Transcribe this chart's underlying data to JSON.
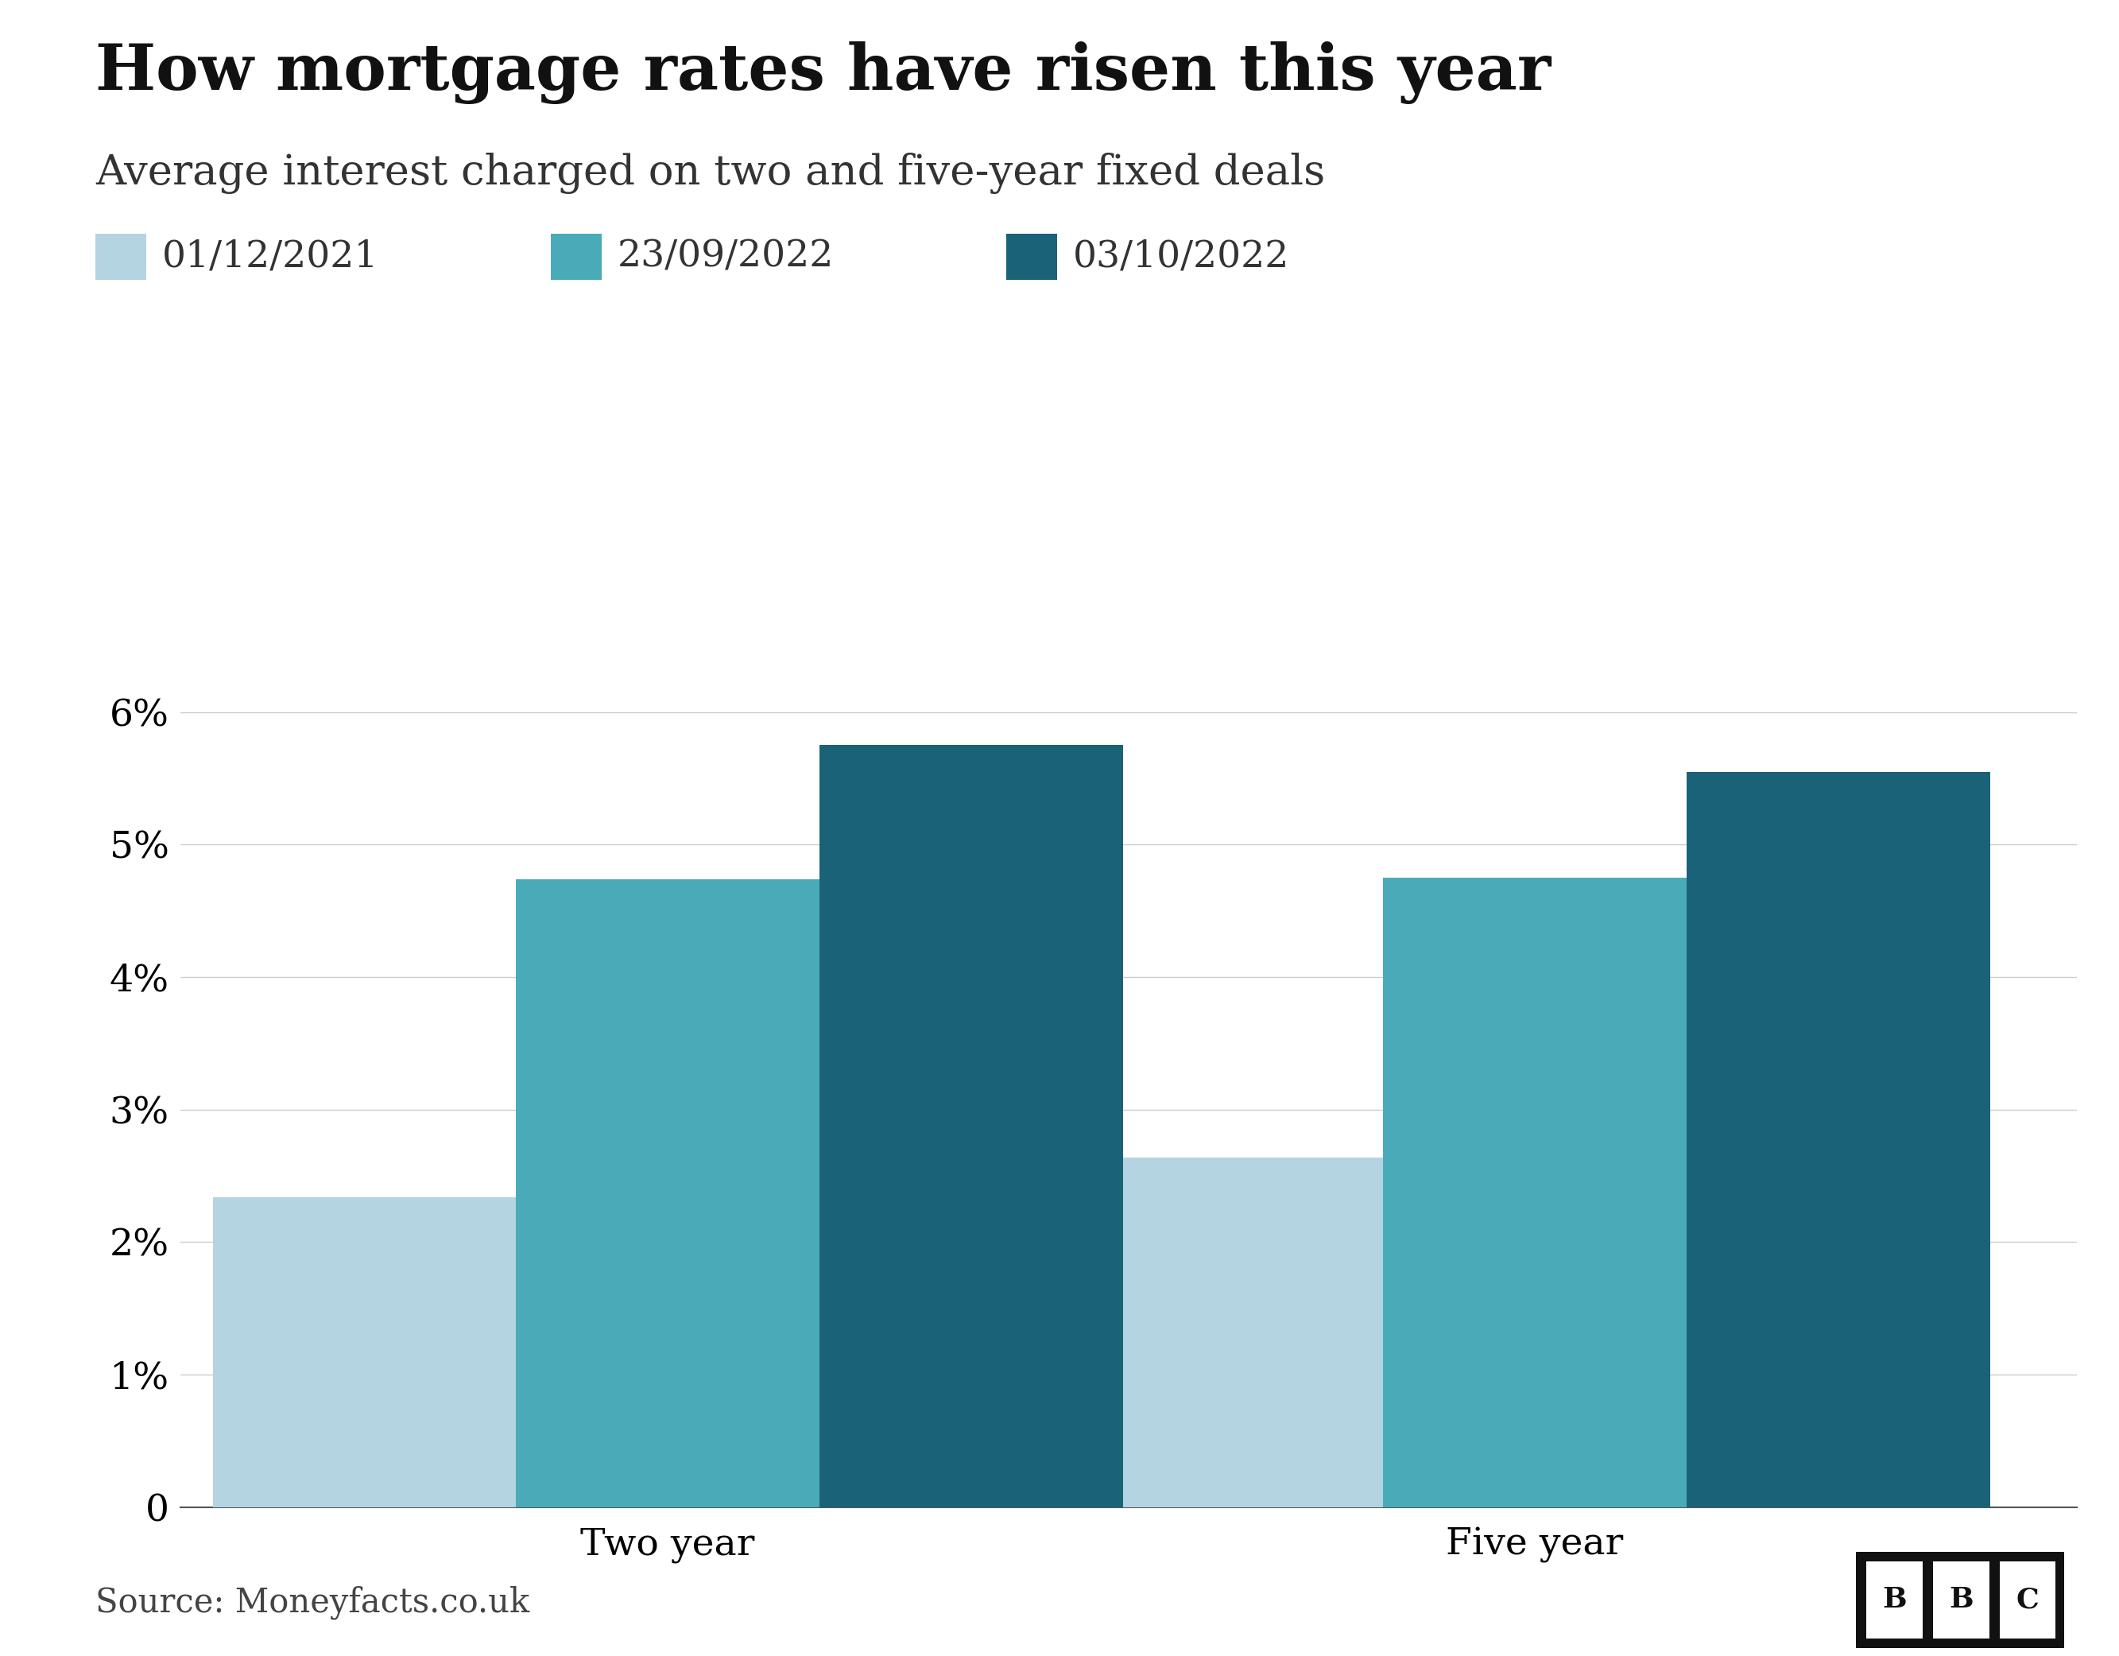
{
  "title": "How mortgage rates have risen this year",
  "subtitle": "Average interest charged on two and five-year fixed deals",
  "categories": [
    "Two year",
    "Five year"
  ],
  "series": [
    {
      "label": "01/12/2021",
      "color": "#b3d4e0",
      "values": [
        2.34,
        2.64
      ]
    },
    {
      "label": "23/09/2022",
      "color": "#4aabb8",
      "values": [
        4.74,
        4.75
      ]
    },
    {
      "label": "03/10/2022",
      "color": "#1a6278",
      "values": [
        5.75,
        5.55
      ]
    }
  ],
  "ylim": [
    0,
    7
  ],
  "yticks": [
    0,
    1,
    2,
    3,
    4,
    5,
    6
  ],
  "ytick_labels": [
    "0",
    "1%",
    "2%",
    "3%",
    "4%",
    "5%",
    "6%"
  ],
  "source": "Source: Moneyfacts.co.uk",
  "background_color": "#ffffff",
  "title_fontsize": 58,
  "subtitle_fontsize": 38,
  "legend_fontsize": 34,
  "tick_fontsize": 34,
  "source_fontsize": 30,
  "bar_width": 0.28,
  "group_positions": [
    0.35,
    1.15
  ]
}
